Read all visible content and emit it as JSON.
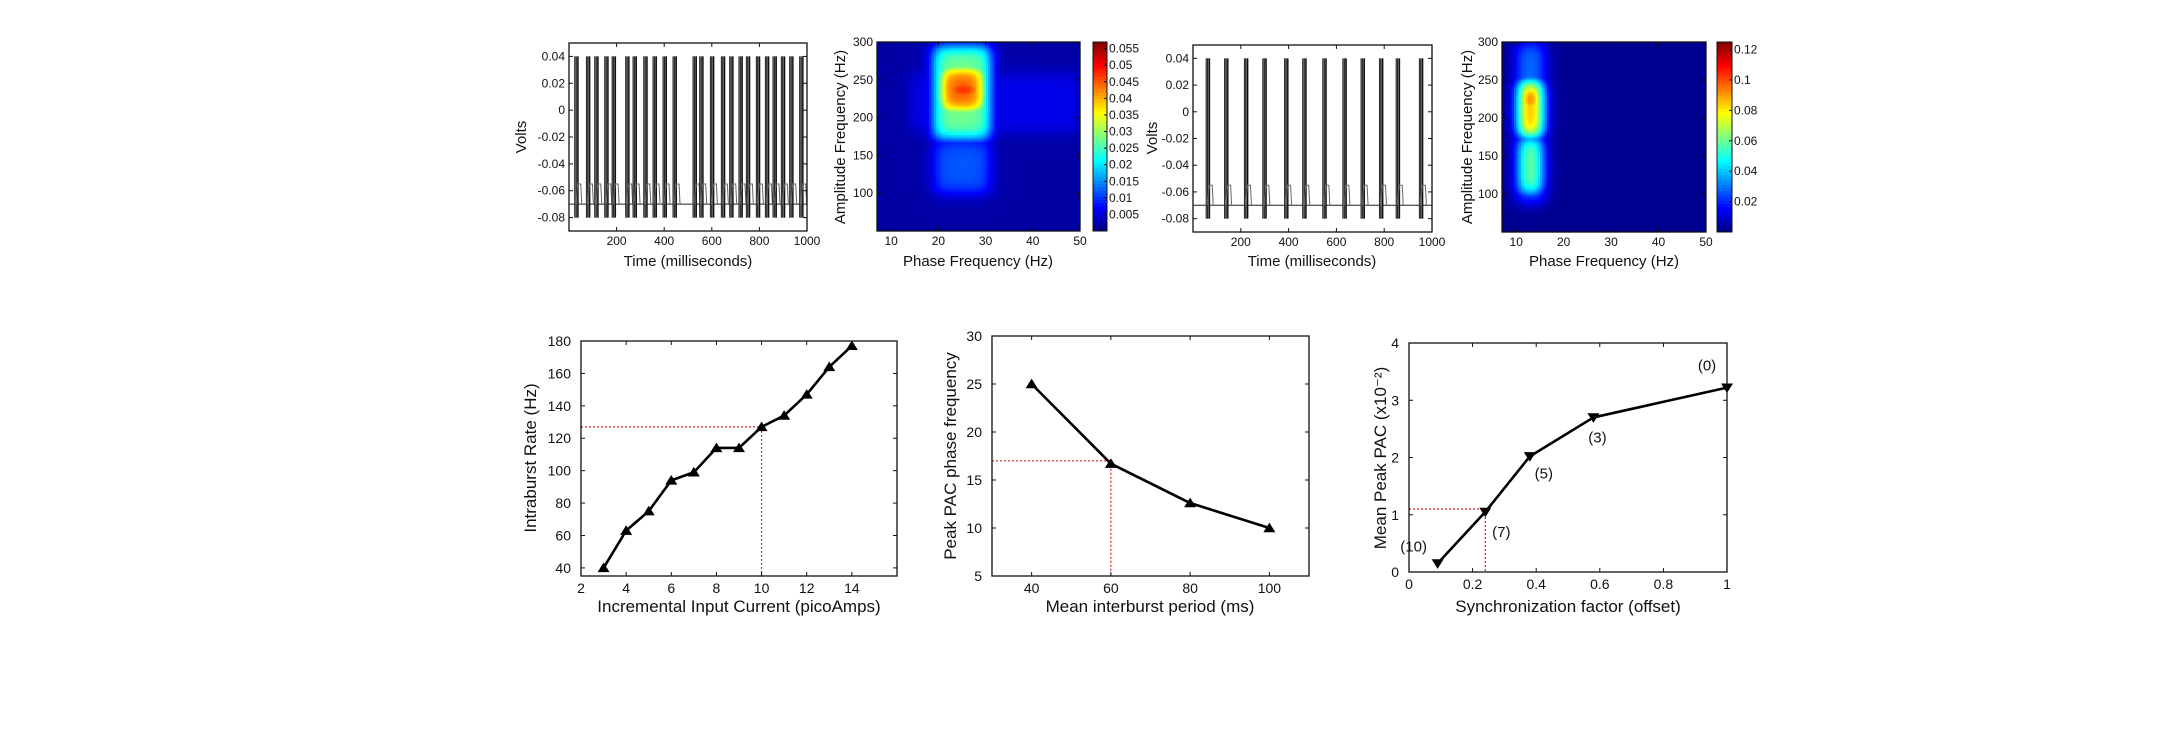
{
  "chart_data": [
    {
      "type": "line",
      "panel": "top-1",
      "xlabel": "Time (milliseconds)",
      "ylabel": "Volts",
      "xlim": [
        0,
        1000
      ],
      "ylim": [
        -0.09,
        0.05
      ],
      "xticks": [
        200,
        400,
        600,
        800,
        1000
      ],
      "yticks": [
        -0.08,
        -0.06,
        -0.04,
        -0.02,
        0,
        0.02,
        0.04
      ],
      "ytick_labels": [
        "-0.08",
        "-0.06",
        "-0.04",
        "-0.02",
        "0",
        "0.02",
        "0.04"
      ],
      "spike_peak": 0.04,
      "spike_trough": -0.08,
      "resting": -0.07,
      "burst_times_ms": [
        25,
        74,
        109,
        151,
        182,
        239,
        270,
        315,
        354,
        396,
        438,
        522,
        550,
        595,
        641,
        676,
        715,
        746,
        788,
        826,
        858,
        893,
        928,
        970
      ]
    },
    {
      "type": "heatmap",
      "panel": "top-2",
      "xlabel": "Phase Frequency (Hz)",
      "ylabel": "Amplitude Frequency (Hz)",
      "xlim": [
        7,
        50
      ],
      "ylim": [
        50,
        300
      ],
      "xticks": [
        10,
        20,
        30,
        40,
        50
      ],
      "yticks": [
        100,
        150,
        200,
        250,
        300
      ],
      "colorbar": {
        "clim": [
          0,
          0.057
        ],
        "ticks": [
          0.005,
          0.01,
          0.015,
          0.02,
          0.025,
          0.03,
          0.035,
          0.04,
          0.045,
          0.05,
          0.055
        ],
        "tick_labels": [
          "0.005",
          "0.01",
          "0.015",
          "0.02",
          "0.025",
          "0.03",
          "0.035",
          "0.04",
          "0.045",
          "0.05",
          "0.055"
        ]
      },
      "background": 0.002,
      "regions": [
        {
          "phase": [
            14,
            50
          ],
          "amp": [
            180,
            260
          ],
          "value": 0.006
        },
        {
          "phase": [
            19,
            31
          ],
          "amp": [
            100,
            172
          ],
          "value": 0.012
        },
        {
          "phase": [
            19,
            31
          ],
          "amp": [
            172,
            295
          ],
          "value": 0.028
        },
        {
          "phase": [
            20,
            30
          ],
          "amp": [
            205,
            270
          ],
          "value": 0.045
        },
        {
          "phase": [
            21,
            29.5
          ],
          "amp": [
            220,
            255
          ],
          "value": 0.053
        },
        {
          "phase": [
            25,
            29
          ],
          "amp": [
            230,
            245
          ],
          "value": 0.056
        }
      ]
    },
    {
      "type": "line",
      "panel": "top-3",
      "xlabel": "Time (milliseconds)",
      "ylabel": "Volts",
      "xlim": [
        0,
        1000
      ],
      "ylim": [
        -0.09,
        0.05
      ],
      "xticks": [
        200,
        400,
        600,
        800,
        1000
      ],
      "yticks": [
        -0.08,
        -0.06,
        -0.04,
        -0.02,
        0,
        0.02,
        0.04
      ],
      "ytick_labels": [
        "-0.08",
        "-0.06",
        "-0.04",
        "-0.02",
        "0",
        "0.02",
        "0.04"
      ],
      "spike_peak": 0.04,
      "spike_trough": -0.08,
      "resting": -0.07,
      "burst_times_ms": [
        56,
        133,
        216,
        293,
        384,
        460,
        544,
        628,
        704,
        781,
        851,
        948
      ]
    },
    {
      "type": "heatmap",
      "panel": "top-4",
      "xlabel": "Phase Frequency (Hz)",
      "ylabel": "Amplitude Frequency (Hz)",
      "xlim": [
        7,
        50
      ],
      "ylim": [
        50,
        300
      ],
      "xticks": [
        10,
        20,
        30,
        40,
        50
      ],
      "yticks": [
        100,
        150,
        200,
        250,
        300
      ],
      "colorbar": {
        "clim": [
          0,
          0.125
        ],
        "ticks": [
          0.02,
          0.04,
          0.06,
          0.08,
          0.1,
          0.12
        ],
        "tick_labels": [
          "0.02",
          "0.04",
          "0.06",
          "0.08",
          "0.1",
          "0.12"
        ]
      },
      "background": 0.002,
      "regions": [
        {
          "phase": [
            10,
            16
          ],
          "amp": [
            90,
            300
          ],
          "value": 0.03
        },
        {
          "phase": [
            10.5,
            15.5
          ],
          "amp": [
            100,
            175
          ],
          "value": 0.065
        },
        {
          "phase": [
            10.5,
            15.5
          ],
          "amp": [
            175,
            250
          ],
          "value": 0.095
        },
        {
          "phase": [
            11,
            15
          ],
          "amp": [
            205,
            245
          ],
          "value": 0.12
        }
      ]
    },
    {
      "type": "line",
      "panel": "bottom-1",
      "xlabel": "Incremental Input Current (picoAmps)",
      "ylabel": "Intraburst Rate (Hz)",
      "xlim": [
        2,
        16
      ],
      "ylim": [
        35,
        180
      ],
      "xticks": [
        2,
        4,
        6,
        8,
        10,
        12,
        14
      ],
      "yticks": [
        40,
        60,
        80,
        100,
        120,
        140,
        160,
        180
      ],
      "marker": "triangle-up",
      "x": [
        3,
        4,
        5,
        6,
        7,
        8,
        9,
        10,
        11,
        12,
        13,
        14
      ],
      "y": [
        40,
        63,
        75,
        94,
        99,
        114,
        114,
        127,
        134,
        147,
        164,
        177
      ],
      "reference": {
        "x": 10,
        "y": 127,
        "color": "#e02020"
      }
    },
    {
      "type": "line",
      "panel": "bottom-2",
      "xlabel": "Mean interburst period (ms)",
      "ylabel": "Peak PAC phase frequency",
      "xlim": [
        30,
        110
      ],
      "ylim": [
        5,
        30
      ],
      "xticks": [
        40,
        60,
        80,
        100
      ],
      "yticks": [
        5,
        10,
        15,
        20,
        25,
        30
      ],
      "marker": "triangle-up",
      "x": [
        40,
        60,
        80,
        100
      ],
      "y": [
        25,
        16.7,
        12.6,
        10
      ],
      "reference": {
        "x": 60,
        "y": 17,
        "color": "#e02020"
      }
    },
    {
      "type": "line",
      "panel": "bottom-3",
      "xlabel": "Synchronization factor (offset)",
      "ylabel": "Mean Peak PAC (x10⁻²)",
      "xlim": [
        0,
        1
      ],
      "ylim": [
        0,
        4
      ],
      "xticks": [
        0,
        0.2,
        0.4,
        0.6,
        0.8,
        1
      ],
      "yticks": [
        0,
        1,
        2,
        3,
        4
      ],
      "marker": "triangle-down",
      "x": [
        0.09,
        0.24,
        0.38,
        0.58,
        1.0
      ],
      "y": [
        0.15,
        1.05,
        2.02,
        2.7,
        3.22
      ],
      "point_labels": [
        "(10)",
        "(7)",
        "(5)",
        "(3)",
        "(0)"
      ],
      "reference": {
        "x": 0.24,
        "y": 1.1,
        "color": "#e02020"
      }
    }
  ]
}
